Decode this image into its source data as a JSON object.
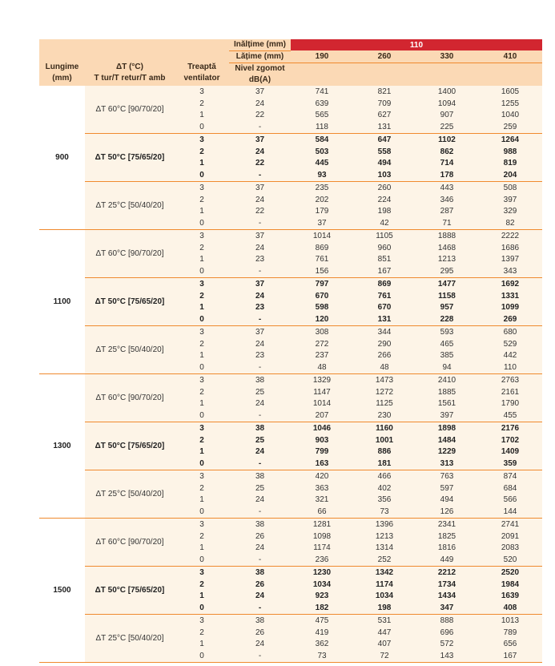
{
  "header": {
    "height_label": "Inălțime (mm)",
    "height_value": "110",
    "width_label": "Lățime (mm)",
    "widths": [
      "190",
      "260",
      "330",
      "410"
    ],
    "noise_label_1": "Nivel zgomot",
    "noise_label_2": "dB(A)",
    "length_label_1": "Lungime",
    "length_label_2": "(mm)",
    "dt_label_1": "ΔT (°C)",
    "dt_label_2": "T tur/T retur/T amb",
    "step_label_1": "Treaptă",
    "step_label_2": "ventilator"
  },
  "colors": {
    "header_bg": "#fbd9b5",
    "accent_red": "#d22630",
    "line_orange": "#f08a2e",
    "body_bg": "#fdf4e7"
  },
  "groups": [
    {
      "length": "900",
      "subgroups": [
        {
          "label": "ΔT 60°C [90/70/20]",
          "bold": false,
          "rows": [
            [
              "3",
              "37",
              "741",
              "821",
              "1400",
              "1605"
            ],
            [
              "2",
              "24",
              "639",
              "709",
              "1094",
              "1255"
            ],
            [
              "1",
              "22",
              "565",
              "627",
              "907",
              "1040"
            ],
            [
              "0",
              "-",
              "118",
              "131",
              "225",
              "259"
            ]
          ]
        },
        {
          "label": "ΔT 50°C [75/65/20]",
          "bold": true,
          "rows": [
            [
              "3",
              "37",
              "584",
              "647",
              "1102",
              "1264"
            ],
            [
              "2",
              "24",
              "503",
              "558",
              "862",
              "988"
            ],
            [
              "1",
              "22",
              "445",
              "494",
              "714",
              "819"
            ],
            [
              "0",
              "-",
              "93",
              "103",
              "178",
              "204"
            ]
          ]
        },
        {
          "label": "ΔT 25°C [50/40/20]",
          "bold": false,
          "rows": [
            [
              "3",
              "37",
              "235",
              "260",
              "443",
              "508"
            ],
            [
              "2",
              "24",
              "202",
              "224",
              "346",
              "397"
            ],
            [
              "1",
              "22",
              "179",
              "198",
              "287",
              "329"
            ],
            [
              "0",
              "-",
              "37",
              "42",
              "71",
              "82"
            ]
          ]
        }
      ]
    },
    {
      "length": "1100",
      "subgroups": [
        {
          "label": "ΔT 60°C [90/70/20]",
          "bold": false,
          "rows": [
            [
              "3",
              "37",
              "1014",
              "1105",
              "1888",
              "2222"
            ],
            [
              "2",
              "24",
              "869",
              "960",
              "1468",
              "1686"
            ],
            [
              "1",
              "23",
              "761",
              "851",
              "1213",
              "1397"
            ],
            [
              "0",
              "-",
              "156",
              "167",
              "295",
              "343"
            ]
          ]
        },
        {
          "label": "ΔT 50°C [75/65/20]",
          "bold": true,
          "rows": [
            [
              "3",
              "37",
              "797",
              "869",
              "1477",
              "1692"
            ],
            [
              "2",
              "24",
              "670",
              "761",
              "1158",
              "1331"
            ],
            [
              "1",
              "23",
              "598",
              "670",
              "957",
              "1099"
            ],
            [
              "0",
              "-",
              "120",
              "131",
              "228",
              "269"
            ]
          ]
        },
        {
          "label": "ΔT 25°C [50/40/20]",
          "bold": false,
          "rows": [
            [
              "3",
              "37",
              "308",
              "344",
              "593",
              "680"
            ],
            [
              "2",
              "24",
              "272",
              "290",
              "465",
              "529"
            ],
            [
              "1",
              "23",
              "237",
              "266",
              "385",
              "442"
            ],
            [
              "0",
              "-",
              "48",
              "48",
              "94",
              "110"
            ]
          ]
        }
      ]
    },
    {
      "length": "1300",
      "subgroups": [
        {
          "label": "ΔT 60°C [90/70/20]",
          "bold": false,
          "rows": [
            [
              "3",
              "38",
              "1329",
              "1473",
              "2410",
              "2763"
            ],
            [
              "2",
              "25",
              "1147",
              "1272",
              "1885",
              "2161"
            ],
            [
              "1",
              "24",
              "1014",
              "1125",
              "1561",
              "1790"
            ],
            [
              "0",
              "-",
              "207",
              "230",
              "397",
              "455"
            ]
          ]
        },
        {
          "label": "ΔT 50°C [75/65/20]",
          "bold": true,
          "rows": [
            [
              "3",
              "38",
              "1046",
              "1160",
              "1898",
              "2176"
            ],
            [
              "2",
              "25",
              "903",
              "1001",
              "1484",
              "1702"
            ],
            [
              "1",
              "24",
              "799",
              "886",
              "1229",
              "1409"
            ],
            [
              "0",
              "-",
              "163",
              "181",
              "313",
              "359"
            ]
          ]
        },
        {
          "label": "ΔT 25°C [50/40/20]",
          "bold": false,
          "rows": [
            [
              "3",
              "38",
              "420",
              "466",
              "763",
              "874"
            ],
            [
              "2",
              "25",
              "363",
              "402",
              "597",
              "684"
            ],
            [
              "1",
              "24",
              "321",
              "356",
              "494",
              "566"
            ],
            [
              "0",
              "-",
              "66",
              "73",
              "126",
              "144"
            ]
          ]
        }
      ]
    },
    {
      "length": "1500",
      "subgroups": [
        {
          "label": "ΔT 60°C [90/70/20]",
          "bold": false,
          "rows": [
            [
              "3",
              "38",
              "1281",
              "1396",
              "2341",
              "2741"
            ],
            [
              "2",
              "26",
              "1098",
              "1213",
              "1825",
              "2091"
            ],
            [
              "1",
              "24",
              "1174",
              "1314",
              "1816",
              "2083"
            ],
            [
              "0",
              "-",
              "236",
              "252",
              "449",
              "520"
            ]
          ]
        },
        {
          "label": "ΔT 50°C [75/65/20]",
          "bold": true,
          "rows": [
            [
              "3",
              "38",
              "1230",
              "1342",
              "2212",
              "2520"
            ],
            [
              "2",
              "26",
              "1034",
              "1174",
              "1734",
              "1984"
            ],
            [
              "1",
              "24",
              "923",
              "1034",
              "1434",
              "1639"
            ],
            [
              "0",
              "-",
              "182",
              "198",
              "347",
              "408"
            ]
          ]
        },
        {
          "label": "ΔT 25°C [50/40/20]",
          "bold": false,
          "rows": [
            [
              "3",
              "38",
              "475",
              "531",
              "888",
              "1013"
            ],
            [
              "2",
              "26",
              "419",
              "447",
              "696",
              "789"
            ],
            [
              "1",
              "24",
              "362",
              "407",
              "572",
              "656"
            ],
            [
              "0",
              "-",
              "73",
              "72",
              "143",
              "167"
            ]
          ]
        }
      ]
    }
  ]
}
